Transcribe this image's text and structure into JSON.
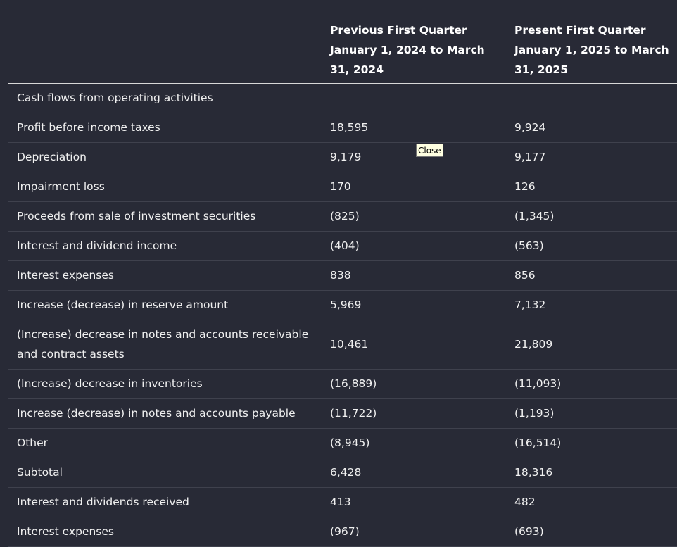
{
  "table": {
    "headers": [
      "",
      "Previous First Quarter January 1, 2024 to March 31, 2024",
      "Present First Quarter January 1, 2025 to March 31, 2025"
    ],
    "rows": [
      {
        "label": "Cash flows from operating activities",
        "prev": "",
        "present": ""
      },
      {
        "label": "Profit before income taxes",
        "prev": "18,595",
        "present": "9,924"
      },
      {
        "label": "Depreciation",
        "prev": "9,179",
        "present": "9,177"
      },
      {
        "label": "Impairment loss",
        "prev": "170",
        "present": "126"
      },
      {
        "label": "Proceeds from sale of investment securities",
        "prev": "(825)",
        "present": "(1,345)"
      },
      {
        "label": "Interest and dividend income",
        "prev": "(404)",
        "present": "(563)"
      },
      {
        "label": "Interest expenses",
        "prev": "838",
        "present": "856"
      },
      {
        "label": "Increase (decrease) in reserve amount",
        "prev": "5,969",
        "present": "7,132"
      },
      {
        "label": "(Increase) decrease in notes and accounts receivable and contract assets",
        "prev": "10,461",
        "present": "21,809"
      },
      {
        "label": "(Increase) decrease in inventories",
        "prev": "(16,889)",
        "present": "(11,093)"
      },
      {
        "label": "Increase (decrease) in notes and accounts payable",
        "prev": "(11,722)",
        "present": "(1,193)"
      },
      {
        "label": "Other",
        "prev": "(8,945)",
        "present": "(16,514)"
      },
      {
        "label": "Subtotal",
        "prev": "6,428",
        "present": "18,316"
      },
      {
        "label": "Interest and dividends received",
        "prev": "413",
        "present": "482"
      },
      {
        "label": "Interest expenses",
        "prev": "(967)",
        "present": "(693)"
      }
    ]
  },
  "tooltip": {
    "text": "Close"
  }
}
